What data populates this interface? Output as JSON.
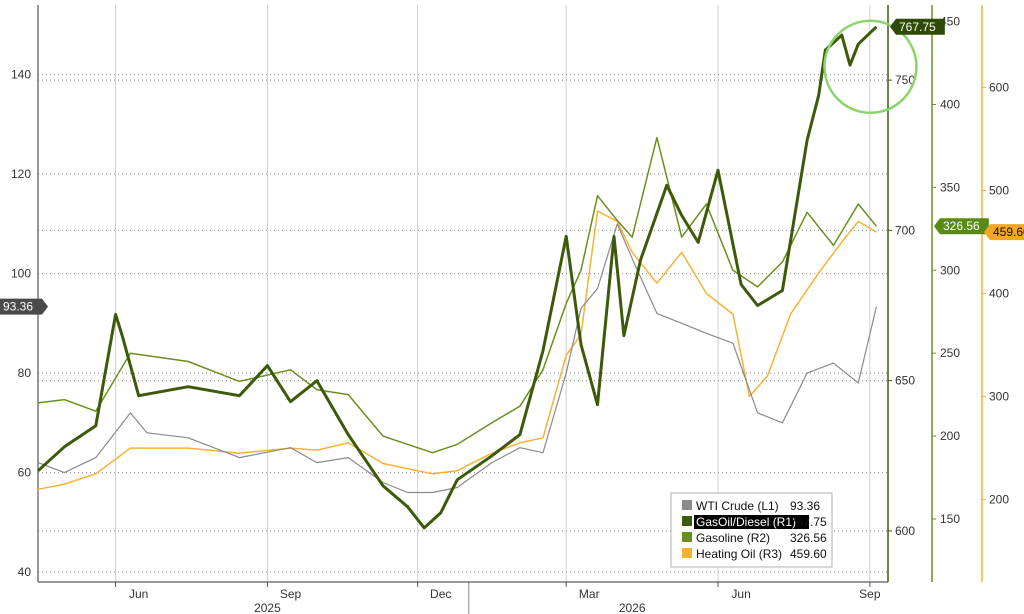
{
  "chart_data": {
    "type": "line",
    "x_axis": {
      "months": [
        "Jun",
        "Sep",
        "Dec",
        "Mar",
        "Jun",
        "Sep"
      ],
      "years": [
        "2025",
        "2026"
      ]
    },
    "axes": {
      "L1": {
        "ticks": [
          40,
          60,
          80,
          100,
          120,
          140
        ],
        "ylim": [
          38,
          154
        ]
      },
      "R1": {
        "ticks": [
          600,
          650,
          700,
          750
        ],
        "ylim": [
          583,
          775
        ]
      },
      "R2": {
        "ticks": [
          150,
          200,
          250,
          300,
          350,
          400,
          450
        ],
        "ylim": [
          112,
          460
        ]
      },
      "R3": {
        "ticks": [
          200,
          300,
          400,
          500,
          600
        ],
        "ylim": [
          120,
          680
        ]
      }
    },
    "series": [
      {
        "name": "WTI Crude (L1)",
        "axis": "L1",
        "color": "#8a8a8a",
        "width": 1.2,
        "last": "93.36",
        "x": [
          "2025-04-15",
          "2025-05-01",
          "2025-05-20",
          "2025-06-10",
          "2025-06-20",
          "2025-07-15",
          "2025-08-15",
          "2025-09-15",
          "2025-10-01",
          "2025-10-20",
          "2025-11-10",
          "2025-11-25",
          "2025-12-10",
          "2025-12-25",
          "2026-01-15",
          "2026-02-01",
          "2026-02-15",
          "2026-03-01",
          "2026-03-10",
          "2026-03-20",
          "2026-04-01",
          "2026-04-10",
          "2026-04-25",
          "2026-05-10",
          "2026-05-25",
          "2026-06-10",
          "2026-06-25",
          "2026-07-10",
          "2026-07-25",
          "2026-08-10",
          "2026-08-25",
          "2026-09-05"
        ],
        "y": [
          62,
          60,
          63,
          72,
          68,
          67,
          63,
          65,
          62,
          63,
          58,
          56,
          56,
          57,
          62,
          65,
          64,
          80,
          93,
          97,
          110,
          103,
          92,
          90,
          88,
          86,
          72,
          70,
          80,
          82,
          78,
          93.36
        ]
      },
      {
        "name": "GasOil/Diesel (R1)",
        "axis": "R1",
        "color": "#3d5a0a",
        "width": 3.0,
        "last": "767.75",
        "x": [
          "2025-04-15",
          "2025-05-01",
          "2025-05-20",
          "2025-06-01",
          "2025-06-05",
          "2025-06-15",
          "2025-07-15",
          "2025-08-15",
          "2025-09-01",
          "2025-09-15",
          "2025-10-01",
          "2025-10-20",
          "2025-11-10",
          "2025-11-25",
          "2025-12-05",
          "2025-12-15",
          "2025-12-25",
          "2026-01-15",
          "2026-02-01",
          "2026-02-15",
          "2026-03-01",
          "2026-03-10",
          "2026-03-20",
          "2026-03-30",
          "2026-04-05",
          "2026-04-15",
          "2026-05-01",
          "2026-05-10",
          "2026-05-20",
          "2026-06-01",
          "2026-06-15",
          "2026-06-25",
          "2026-07-10",
          "2026-07-25",
          "2026-08-01",
          "2026-08-05",
          "2026-08-15",
          "2026-08-20",
          "2026-08-25",
          "2026-09-05"
        ],
        "y": [
          620,
          628,
          635,
          672,
          665,
          645,
          648,
          645,
          655,
          643,
          650,
          632,
          615,
          608,
          601,
          606,
          617,
          625,
          632,
          660,
          698,
          662,
          642,
          698,
          665,
          690,
          715,
          705,
          696,
          720,
          682,
          675,
          680,
          730,
          745,
          760,
          765,
          755,
          762,
          767.75
        ]
      },
      {
        "name": "Gasoline (R2)",
        "axis": "R2",
        "color": "#6a8f1e",
        "width": 1.5,
        "last": "326.56",
        "x": [
          "2025-04-15",
          "2025-05-01",
          "2025-05-20",
          "2025-06-10",
          "2025-07-15",
          "2025-08-15",
          "2025-09-15",
          "2025-10-01",
          "2025-10-20",
          "2025-11-10",
          "2025-11-25",
          "2025-12-10",
          "2025-12-25",
          "2026-01-15",
          "2026-02-01",
          "2026-02-15",
          "2026-03-01",
          "2026-03-10",
          "2026-03-20",
          "2026-04-01",
          "2026-04-10",
          "2026-04-25",
          "2026-05-10",
          "2026-05-25",
          "2026-06-10",
          "2026-06-25",
          "2026-07-10",
          "2026-07-25",
          "2026-08-10",
          "2026-08-25",
          "2026-09-05"
        ],
        "y": [
          220,
          222,
          215,
          250,
          245,
          233,
          240,
          228,
          225,
          200,
          195,
          190,
          195,
          208,
          218,
          240,
          280,
          300,
          345,
          330,
          320,
          380,
          320,
          340,
          300,
          290,
          305,
          335,
          315,
          340,
          326.56
        ]
      },
      {
        "name": "Heating Oil (R3)",
        "axis": "R3",
        "color": "#f5b335",
        "width": 1.5,
        "last": "459.60",
        "x": [
          "2025-04-15",
          "2025-05-01",
          "2025-05-20",
          "2025-06-10",
          "2025-07-15",
          "2025-08-15",
          "2025-09-15",
          "2025-10-01",
          "2025-10-20",
          "2025-11-10",
          "2025-11-25",
          "2025-12-10",
          "2025-12-25",
          "2026-01-15",
          "2026-02-01",
          "2026-02-15",
          "2026-03-01",
          "2026-03-10",
          "2026-03-20",
          "2026-04-01",
          "2026-04-10",
          "2026-04-25",
          "2026-05-10",
          "2026-05-25",
          "2026-06-10",
          "2026-06-20",
          "2026-07-01",
          "2026-07-15",
          "2026-08-01",
          "2026-08-15",
          "2026-08-25",
          "2026-09-05"
        ],
        "y": [
          210,
          215,
          225,
          250,
          250,
          245,
          250,
          248,
          255,
          235,
          230,
          225,
          228,
          245,
          255,
          260,
          340,
          360,
          480,
          470,
          440,
          410,
          440,
          400,
          380,
          300,
          320,
          380,
          420,
          450,
          470,
          459.6
        ]
      }
    ],
    "legend": {
      "placement": "bottom-right",
      "entries": [
        {
          "label": "WTI Crude (L1)",
          "value": "93.36",
          "color": "#8a8a8a"
        },
        {
          "label": "GasOil/Diesel (R1)",
          "value": "767.75",
          "color": "#3d5a0a"
        },
        {
          "label": "Gasoline (R2)",
          "value": "326.56",
          "color": "#6a8f1e"
        },
        {
          "label": "Heating Oil (R3)",
          "value": "459.60",
          "color": "#f5b335"
        }
      ]
    },
    "value_tags": [
      {
        "series": "WTI Crude (L1)",
        "text": "93.36",
        "fill": "#4a4a4a",
        "text_color": "#ffffff",
        "side": "left"
      },
      {
        "series": "GasOil/Diesel (R1)",
        "text": "767.75",
        "fill": "#2f4a06",
        "text_color": "#ffffff",
        "side": "right"
      },
      {
        "series": "Gasoline (R2)",
        "text": "326.56",
        "fill": "#5a8a14",
        "text_color": "#ffffff",
        "side": "right"
      },
      {
        "series": "Heating Oil (R3)",
        "text": "459.60",
        "fill": "#f5a623",
        "text_color": "#111111",
        "side": "right"
      }
    ],
    "annotation": {
      "type": "circle",
      "color": "#8bd46a",
      "target": "GasOil/Diesel (R1) peak"
    },
    "grid": "dotted",
    "colors": {
      "L1_axis": "#333333",
      "R1_axis": "#3d5a0a",
      "R2_axis": "#6a8f1e",
      "R3_axis": "#f5b335",
      "grid": "#8a8a8a"
    }
  }
}
